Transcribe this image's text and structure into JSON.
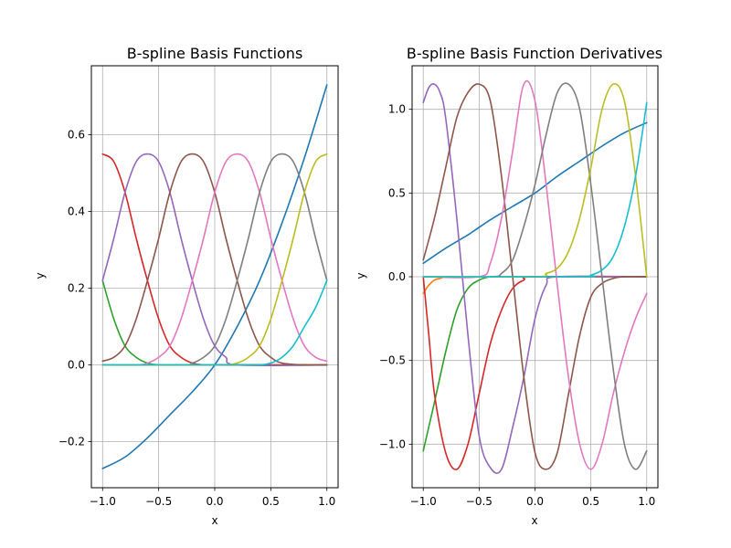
{
  "colors": [
    "#1f77b4",
    "#ff7f0e",
    "#2ca02c",
    "#d62728",
    "#9467bd",
    "#8c564b",
    "#e377c2",
    "#7f7f7f",
    "#bcbd22",
    "#17becf"
  ],
  "chart_data": [
    {
      "type": "line",
      "title": "B-spline Basis Functions",
      "xlabel": "x",
      "ylabel": "y",
      "xlim": [
        -1.1,
        1.1
      ],
      "ylim": [
        -0.32,
        0.78
      ],
      "xticks": [
        -1.0,
        -0.5,
        0.0,
        0.5,
        1.0
      ],
      "xtick_labels": [
        "−1.0",
        "−0.5",
        "0.0",
        "0.5",
        "1.0"
      ],
      "yticks": [
        -0.2,
        0.0,
        0.2,
        0.4,
        0.6
      ],
      "ytick_labels": [
        "−0.2",
        "0.0",
        "0.2",
        "0.4",
        "0.6"
      ],
      "grid": true,
      "series": [
        {
          "x": [
            -1.0,
            -0.8,
            -0.6,
            -0.4,
            -0.2,
            0.0,
            0.2,
            0.4,
            0.6,
            0.8,
            1.0
          ],
          "values": [
            -0.27,
            -0.24,
            -0.19,
            -0.13,
            -0.07,
            0.0,
            0.1,
            0.22,
            0.37,
            0.54,
            0.73
          ]
        },
        {
          "x": [
            -1.0,
            -0.9,
            -0.8,
            -0.7,
            -0.6,
            -0.4,
            0.0,
            0.5,
            1.0
          ],
          "values": [
            0.0,
            0.0,
            0.0,
            0.0,
            0.0,
            0.0,
            0.0,
            0.0,
            0.0
          ]
        },
        {
          "x": [
            -1.0,
            -0.9,
            -0.8,
            -0.7,
            -0.6,
            -0.5,
            -0.4,
            -0.2,
            0.0,
            0.5,
            1.0
          ],
          "values": [
            0.22,
            0.12,
            0.05,
            0.02,
            0.005,
            0.0,
            0.0,
            0.0,
            0.0,
            0.0,
            0.0
          ]
        },
        {
          "x": [
            -1.0,
            -0.9,
            -0.8,
            -0.7,
            -0.6,
            -0.5,
            -0.4,
            -0.3,
            -0.2,
            -0.1,
            0.0,
            0.5,
            1.0
          ],
          "values": [
            0.55,
            0.53,
            0.45,
            0.33,
            0.22,
            0.12,
            0.05,
            0.02,
            0.005,
            0.0,
            0.0,
            0.0,
            0.0
          ]
        },
        {
          "x": [
            -1.0,
            -0.9,
            -0.8,
            -0.7,
            -0.6,
            -0.5,
            -0.4,
            -0.3,
            -0.2,
            -0.1,
            0.0,
            0.1,
            0.2,
            1.0
          ],
          "values": [
            0.22,
            0.33,
            0.45,
            0.53,
            0.55,
            0.53,
            0.45,
            0.33,
            0.22,
            0.12,
            0.05,
            0.02,
            0.0,
            0.0
          ]
        },
        {
          "x": [
            -1.0,
            -0.9,
            -0.8,
            -0.7,
            -0.6,
            -0.5,
            -0.4,
            -0.3,
            -0.2,
            -0.1,
            0.0,
            0.1,
            0.2,
            0.3,
            0.4,
            0.5,
            0.6,
            0.8,
            1.0
          ],
          "values": [
            0.01,
            0.02,
            0.05,
            0.12,
            0.22,
            0.33,
            0.45,
            0.53,
            0.55,
            0.53,
            0.45,
            0.33,
            0.22,
            0.12,
            0.05,
            0.02,
            0.005,
            0.0,
            0.0
          ]
        },
        {
          "x": [
            -1.0,
            -0.7,
            -0.6,
            -0.5,
            -0.4,
            -0.3,
            -0.2,
            -0.1,
            0.0,
            0.1,
            0.2,
            0.3,
            0.4,
            0.5,
            0.6,
            0.7,
            0.8,
            0.9,
            1.0
          ],
          "values": [
            0.0,
            0.0,
            0.005,
            0.02,
            0.05,
            0.12,
            0.22,
            0.33,
            0.45,
            0.53,
            0.55,
            0.53,
            0.45,
            0.33,
            0.22,
            0.12,
            0.05,
            0.02,
            0.01
          ]
        },
        {
          "x": [
            -1.0,
            -0.3,
            -0.2,
            -0.1,
            0.0,
            0.1,
            0.2,
            0.3,
            0.4,
            0.5,
            0.6,
            0.7,
            0.8,
            0.9,
            1.0
          ],
          "values": [
            0.0,
            0.0,
            0.005,
            0.02,
            0.05,
            0.12,
            0.22,
            0.33,
            0.45,
            0.53,
            0.55,
            0.53,
            0.45,
            0.33,
            0.22
          ]
        },
        {
          "x": [
            -1.0,
            0.0,
            0.1,
            0.2,
            0.3,
            0.4,
            0.5,
            0.6,
            0.7,
            0.8,
            0.9,
            1.0
          ],
          "values": [
            0.0,
            0.0,
            0.0,
            0.005,
            0.02,
            0.05,
            0.12,
            0.22,
            0.33,
            0.45,
            0.53,
            0.55
          ]
        },
        {
          "x": [
            -1.0,
            0.3,
            0.4,
            0.5,
            0.6,
            0.7,
            0.8,
            0.9,
            1.0
          ],
          "values": [
            0.0,
            0.0,
            0.0,
            0.005,
            0.02,
            0.05,
            0.1,
            0.15,
            0.22
          ]
        }
      ]
    },
    {
      "type": "line",
      "title": "B-spline Basis Function Derivatives",
      "xlabel": "x",
      "ylabel": "y",
      "xlim": [
        -1.1,
        1.1
      ],
      "ylim": [
        -1.26,
        1.26
      ],
      "xticks": [
        -1.0,
        -0.5,
        0.0,
        0.5,
        1.0
      ],
      "xtick_labels": [
        "−1.0",
        "−0.5",
        "0.0",
        "0.5",
        "1.0"
      ],
      "yticks": [
        -1.0,
        -0.5,
        0.0,
        0.5,
        1.0
      ],
      "ytick_labels": [
        "−1.0",
        "−0.5",
        "0.0",
        "0.5",
        "1.0"
      ],
      "grid": true,
      "series": [
        {
          "x": [
            -1.0,
            -0.8,
            -0.6,
            -0.4,
            -0.2,
            0.0,
            0.2,
            0.4,
            0.6,
            0.8,
            1.0
          ],
          "values": [
            0.08,
            0.17,
            0.25,
            0.34,
            0.42,
            0.5,
            0.6,
            0.69,
            0.78,
            0.86,
            0.92
          ]
        },
        {
          "x": [
            -1.0,
            -0.95,
            -0.9,
            -0.85,
            -0.8,
            -0.7,
            -0.5,
            0.0,
            1.0
          ],
          "values": [
            -0.1,
            -0.05,
            -0.02,
            -0.01,
            0.0,
            0.0,
            0.0,
            0.0,
            0.0
          ]
        },
        {
          "x": [
            -1.0,
            -0.9,
            -0.8,
            -0.7,
            -0.6,
            -0.5,
            -0.4,
            -0.3,
            0.0,
            1.0
          ],
          "values": [
            -1.04,
            -0.75,
            -0.45,
            -0.2,
            -0.07,
            -0.02,
            0.0,
            0.0,
            0.0,
            0.0
          ]
        },
        {
          "x": [
            -1.0,
            -0.95,
            -0.9,
            -0.8,
            -0.7,
            -0.6,
            -0.5,
            -0.4,
            -0.3,
            -0.2,
            -0.1,
            0.0,
            1.0
          ],
          "values": [
            0.0,
            -0.35,
            -0.7,
            -1.05,
            -1.15,
            -1.0,
            -0.7,
            -0.4,
            -0.2,
            -0.07,
            -0.02,
            0.0,
            0.0
          ]
        },
        {
          "x": [
            -1.0,
            -0.95,
            -0.9,
            -0.85,
            -0.8,
            -0.7,
            -0.6,
            -0.5,
            -0.4,
            -0.3,
            -0.2,
            -0.1,
            0.0,
            0.1,
            0.2,
            1.0
          ],
          "values": [
            1.04,
            1.13,
            1.15,
            1.1,
            0.95,
            0.35,
            -0.35,
            -0.95,
            -1.14,
            -1.15,
            -0.9,
            -0.6,
            -0.25,
            -0.05,
            0.0,
            0.0
          ]
        },
        {
          "x": [
            -1.0,
            -0.9,
            -0.8,
            -0.7,
            -0.6,
            -0.5,
            -0.4,
            -0.3,
            -0.2,
            -0.1,
            0.0,
            0.1,
            0.2,
            0.3,
            0.4,
            0.5,
            0.6,
            0.7,
            0.8,
            1.0
          ],
          "values": [
            0.1,
            0.35,
            0.65,
            0.95,
            1.1,
            1.15,
            1.05,
            0.6,
            0.0,
            -0.6,
            -1.05,
            -1.15,
            -1.05,
            -0.7,
            -0.35,
            -0.12,
            -0.04,
            -0.01,
            0.0,
            0.0
          ]
        },
        {
          "x": [
            -1.0,
            -0.5,
            -0.4,
            -0.3,
            -0.2,
            -0.1,
            0.0,
            0.1,
            0.2,
            0.3,
            0.4,
            0.5,
            0.6,
            0.7,
            0.8,
            0.9,
            1.0
          ],
          "values": [
            0.0,
            0.0,
            0.08,
            0.35,
            0.75,
            1.15,
            1.05,
            0.55,
            -0.05,
            -0.6,
            -1.0,
            -1.15,
            -1.0,
            -0.7,
            -0.45,
            -0.25,
            -0.1
          ]
        },
        {
          "x": [
            -1.0,
            -0.4,
            -0.3,
            -0.2,
            -0.1,
            0.0,
            0.1,
            0.2,
            0.3,
            0.4,
            0.5,
            0.6,
            0.7,
            0.8,
            0.9,
            1.0
          ],
          "values": [
            0.0,
            0.0,
            0.02,
            0.1,
            0.3,
            0.55,
            0.85,
            1.1,
            1.15,
            1.0,
            0.55,
            0.0,
            -0.55,
            -1.0,
            -1.15,
            -1.04
          ]
        },
        {
          "x": [
            -1.0,
            0.0,
            0.1,
            0.2,
            0.3,
            0.4,
            0.5,
            0.6,
            0.7,
            0.8,
            0.9,
            1.0
          ],
          "values": [
            0.0,
            0.0,
            0.02,
            0.05,
            0.15,
            0.35,
            0.65,
            1.0,
            1.15,
            1.05,
            0.6,
            0.0
          ]
        },
        {
          "x": [
            -1.0,
            0.4,
            0.5,
            0.6,
            0.7,
            0.8,
            0.9,
            1.0
          ],
          "values": [
            0.0,
            0.0,
            0.01,
            0.04,
            0.12,
            0.3,
            0.6,
            1.04
          ]
        }
      ]
    }
  ]
}
